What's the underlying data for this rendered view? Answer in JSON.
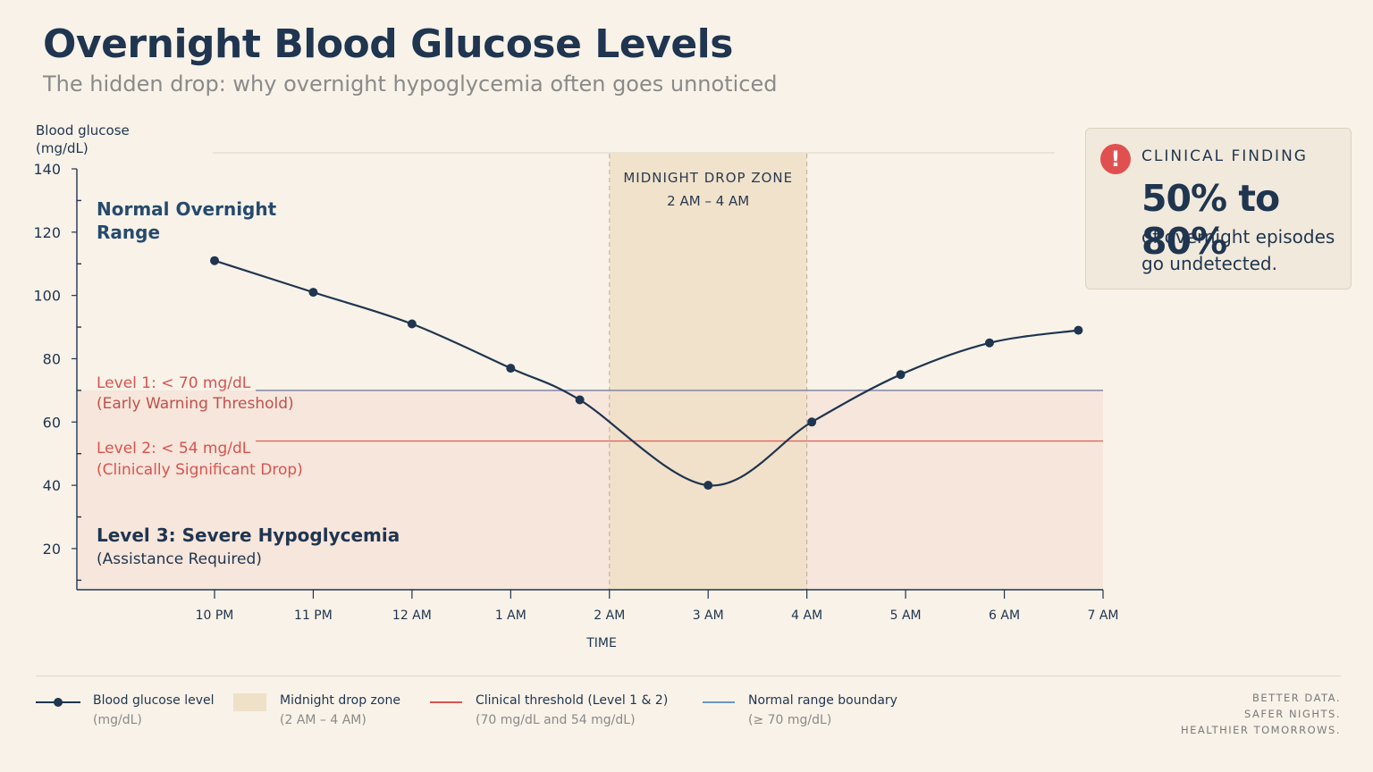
{
  "header": {
    "title": "Overnight Blood Glucose Levels",
    "subtitle": "The hidden drop: why overnight hypoglycemia often goes unnoticed"
  },
  "colors": {
    "line": "#1f3550",
    "threshold": "#d9534f",
    "normal_boundary": "#6a96c0",
    "drop_zone": "#efe0c8",
    "danger_fill": "#f5dccf"
  },
  "chart_data": {
    "type": "line",
    "ylabel_line1": "Blood glucose",
    "ylabel_line2": "(mg/dL)",
    "xlabel": "TIME",
    "ylim": [
      7,
      140
    ],
    "y_ticks": [
      20,
      40,
      60,
      80,
      100,
      120,
      140
    ],
    "x_ticks": [
      "10 PM",
      "11 PM",
      "12 AM",
      "1 AM",
      "2 AM",
      "3 AM",
      "4 AM",
      "5 AM",
      "6 AM",
      "7 AM"
    ],
    "series": [
      {
        "name": "Blood glucose level",
        "x": [
          22.0,
          23.0,
          24.0,
          25.0,
          25.7,
          27.0,
          28.05,
          28.95,
          29.85,
          30.75
        ],
        "y": [
          111,
          101,
          91,
          77,
          67,
          40,
          60,
          75,
          85,
          89
        ]
      }
    ],
    "thresholds": [
      {
        "value": 70,
        "kind": "clinical"
      },
      {
        "value": 54,
        "kind": "clinical"
      },
      {
        "value": 70,
        "kind": "normal"
      }
    ],
    "drop_zone": {
      "from": "2 AM",
      "to": "4 AM",
      "title": "MIDNIGHT DROP ZONE",
      "range": "2 AM – 4 AM"
    },
    "annotations": [
      {
        "text": "Normal Overnight",
        "text2": "Range"
      },
      {
        "text": "Level 1: < 70 mg/dL",
        "text2": "(Early Warning Threshold)"
      },
      {
        "text": "Level 2: < 54 mg/dL",
        "text2": "(Clinically Significant Drop)"
      },
      {
        "text": "Level 3: Severe Hypoglycemia",
        "text2": "(Assistance Required)"
      }
    ]
  },
  "finding": {
    "icon": "alert-icon",
    "heading": "CLINICAL FINDING",
    "stat": "50% to 80%",
    "desc": "of overnight episodes go undetected."
  },
  "legend": [
    {
      "label": "Blood glucose level",
      "sub": "(mg/dL)",
      "swatch": "line-marker"
    },
    {
      "label": "Midnight drop zone",
      "sub": "(2 AM – 4 AM)",
      "swatch": "box"
    },
    {
      "label": "Clinical threshold (Level 1 & 2)",
      "sub": "(70 mg/dL and 54 mg/dL)",
      "swatch": "red-line"
    },
    {
      "label": "Normal range boundary",
      "sub": "(≥ 70 mg/dL)",
      "swatch": "blue-line"
    }
  ],
  "tagline": [
    "BETTER DATA.",
    "SAFER NIGHTS.",
    "HEALTHIER TOMORROWS."
  ]
}
